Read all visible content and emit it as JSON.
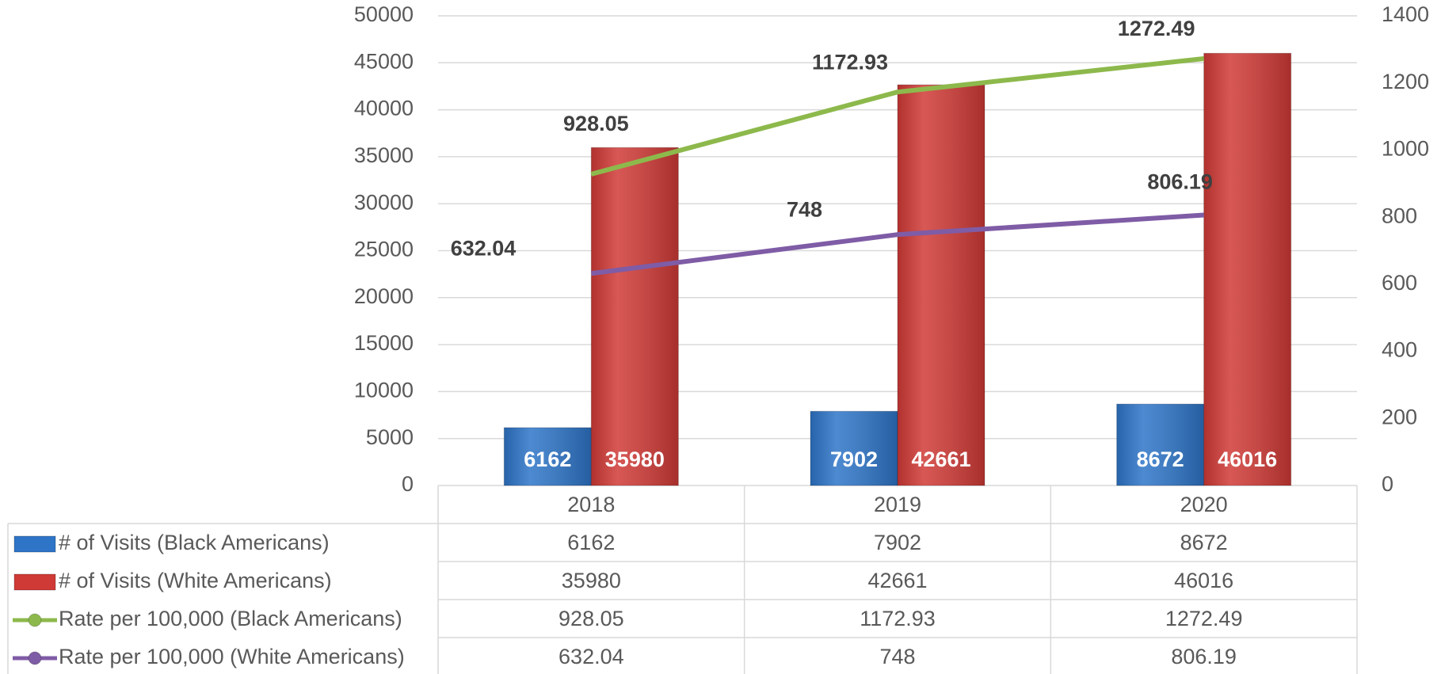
{
  "chart_data": {
    "type": "bar_line_table",
    "categories": [
      "2018",
      "2019",
      "2020"
    ],
    "series": [
      {
        "name": "# of Visits (Black Americans)",
        "color": "#2e75c8",
        "type": "bar",
        "values": [
          6162,
          7902,
          8672
        ]
      },
      {
        "name": "# of Visits (White Americans)",
        "color": "#d03a36",
        "type": "bar",
        "values": [
          35980,
          42661,
          46016
        ]
      },
      {
        "name": "Rate per 100,000 (Black Americans)",
        "color": "#8db94c",
        "type": "line",
        "axis": "y2",
        "values": [
          928.05,
          1172.93,
          1272.49
        ]
      },
      {
        "name": "Rate per 100,000 (White Americans)",
        "color": "#7f5ca6",
        "type": "line",
        "axis": "y2",
        "values": [
          632.04,
          748,
          806.19
        ]
      }
    ],
    "ylim": [
      0,
      50000
    ],
    "yticks": [
      0,
      5000,
      10000,
      15000,
      20000,
      25000,
      30000,
      35000,
      40000,
      45000,
      50000
    ],
    "y2lim": [
      0,
      1400
    ],
    "y2ticks": [
      0,
      200,
      400,
      600,
      800,
      1000,
      1200,
      1400
    ],
    "grid": true
  }
}
